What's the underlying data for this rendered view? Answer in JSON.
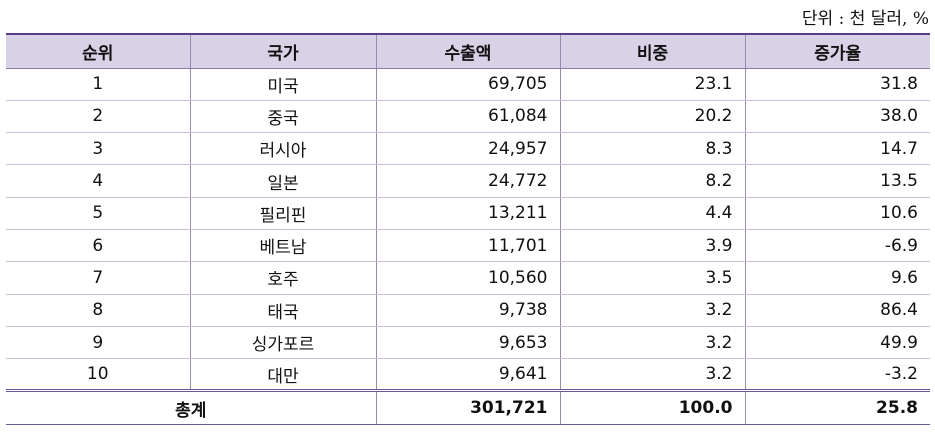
{
  "unit_note": "단위 : 천 달러, %",
  "headers": [
    "순위",
    "국가",
    "수출액",
    "비중",
    "증가율"
  ],
  "rows": [
    {
      "rank": "1",
      "country": "미국",
      "export": "69,705",
      "share": "23.1",
      "growth": "31.8"
    },
    {
      "rank": "2",
      "country": "중국",
      "export": "61,084",
      "share": "20.2",
      "growth": "38.0"
    },
    {
      "rank": "3",
      "country": "러시아",
      "export": "24,957",
      "share": "8.3",
      "growth": "14.7"
    },
    {
      "rank": "4",
      "country": "일본",
      "export": "24,772",
      "share": "8.2",
      "growth": "13.5"
    },
    {
      "rank": "5",
      "country": "필리핀",
      "export": "13,211",
      "share": "4.4",
      "growth": "10.6"
    },
    {
      "rank": "6",
      "country": "베트남",
      "export": "11,701",
      "share": "3.9",
      "growth": "-6.9"
    },
    {
      "rank": "7",
      "country": "호주",
      "export": "10,560",
      "share": "3.5",
      "growth": "9.6"
    },
    {
      "rank": "8",
      "country": "태국",
      "export": "9,738",
      "share": "3.2",
      "growth": "86.4"
    },
    {
      "rank": "9",
      "country": "싱가포르",
      "export": "9,653",
      "share": "3.2",
      "growth": "49.9"
    },
    {
      "rank": "10",
      "country": "대만",
      "export": "9,641",
      "share": "3.2",
      "growth": "-3.2"
    }
  ],
  "total": {
    "label": "총계",
    "export": "301,721",
    "share": "100.0",
    "growth": "25.8"
  },
  "colors": {
    "header_background": "#d9d1e6",
    "accent_border": "#5a3f86"
  }
}
